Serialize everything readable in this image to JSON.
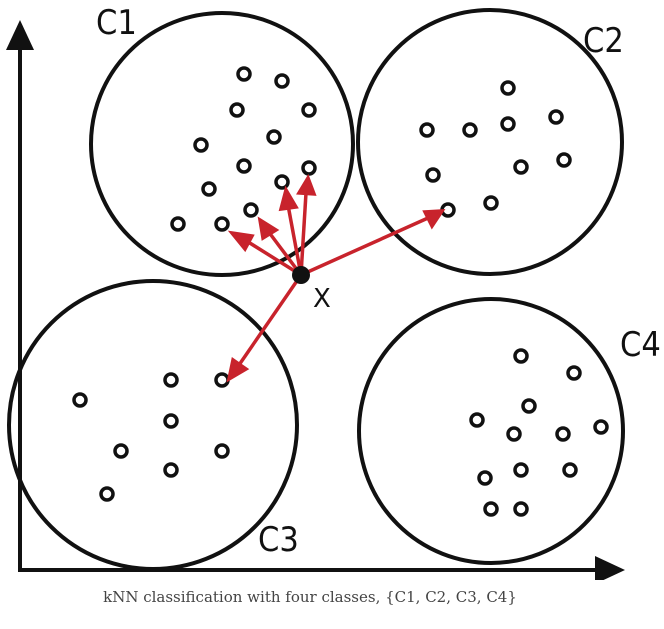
{
  "caption": "kNN classification with four classes, {C1, C2, C3, C4}",
  "query_label": "X",
  "colors": {
    "stroke": "#111111",
    "arrow": "#c8232c",
    "background": "#ffffff"
  },
  "clusters": [
    {
      "id": "c1",
      "label": "C1"
    },
    {
      "id": "c2",
      "label": "C2"
    },
    {
      "id": "c3",
      "label": "C3"
    },
    {
      "id": "c4",
      "label": "C4"
    }
  ]
}
